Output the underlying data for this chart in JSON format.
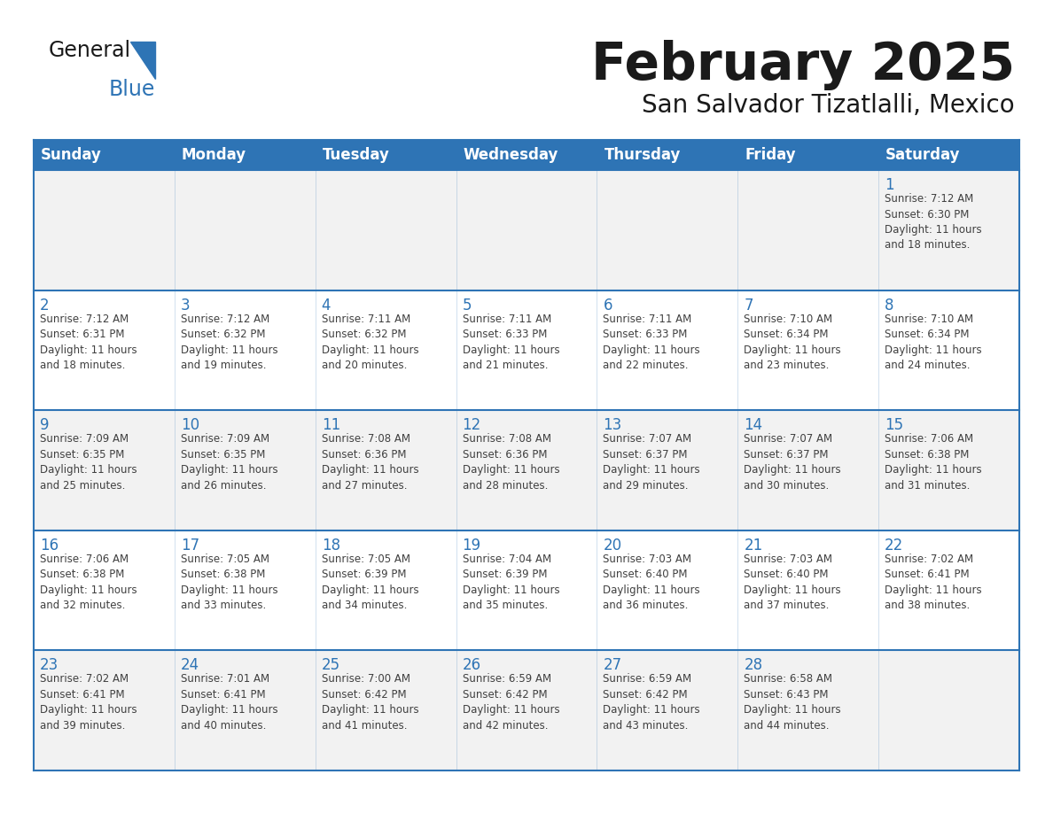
{
  "title": "February 2025",
  "subtitle": "San Salvador Tizatlalli, Mexico",
  "header_bg": "#2e74b5",
  "header_text_color": "#ffffff",
  "cell_bg_white": "#ffffff",
  "cell_bg_gray": "#f2f2f2",
  "cell_border_color": "#2e74b5",
  "day_number_color": "#2e74b5",
  "info_text_color": "#404040",
  "title_color": "#1a1a1a",
  "days_of_week": [
    "Sunday",
    "Monday",
    "Tuesday",
    "Wednesday",
    "Thursday",
    "Friday",
    "Saturday"
  ],
  "weeks": [
    [
      {
        "day": "",
        "info": ""
      },
      {
        "day": "",
        "info": ""
      },
      {
        "day": "",
        "info": ""
      },
      {
        "day": "",
        "info": ""
      },
      {
        "day": "",
        "info": ""
      },
      {
        "day": "",
        "info": ""
      },
      {
        "day": "1",
        "info": "Sunrise: 7:12 AM\nSunset: 6:30 PM\nDaylight: 11 hours\nand 18 minutes."
      }
    ],
    [
      {
        "day": "2",
        "info": "Sunrise: 7:12 AM\nSunset: 6:31 PM\nDaylight: 11 hours\nand 18 minutes."
      },
      {
        "day": "3",
        "info": "Sunrise: 7:12 AM\nSunset: 6:32 PM\nDaylight: 11 hours\nand 19 minutes."
      },
      {
        "day": "4",
        "info": "Sunrise: 7:11 AM\nSunset: 6:32 PM\nDaylight: 11 hours\nand 20 minutes."
      },
      {
        "day": "5",
        "info": "Sunrise: 7:11 AM\nSunset: 6:33 PM\nDaylight: 11 hours\nand 21 minutes."
      },
      {
        "day": "6",
        "info": "Sunrise: 7:11 AM\nSunset: 6:33 PM\nDaylight: 11 hours\nand 22 minutes."
      },
      {
        "day": "7",
        "info": "Sunrise: 7:10 AM\nSunset: 6:34 PM\nDaylight: 11 hours\nand 23 minutes."
      },
      {
        "day": "8",
        "info": "Sunrise: 7:10 AM\nSunset: 6:34 PM\nDaylight: 11 hours\nand 24 minutes."
      }
    ],
    [
      {
        "day": "9",
        "info": "Sunrise: 7:09 AM\nSunset: 6:35 PM\nDaylight: 11 hours\nand 25 minutes."
      },
      {
        "day": "10",
        "info": "Sunrise: 7:09 AM\nSunset: 6:35 PM\nDaylight: 11 hours\nand 26 minutes."
      },
      {
        "day": "11",
        "info": "Sunrise: 7:08 AM\nSunset: 6:36 PM\nDaylight: 11 hours\nand 27 minutes."
      },
      {
        "day": "12",
        "info": "Sunrise: 7:08 AM\nSunset: 6:36 PM\nDaylight: 11 hours\nand 28 minutes."
      },
      {
        "day": "13",
        "info": "Sunrise: 7:07 AM\nSunset: 6:37 PM\nDaylight: 11 hours\nand 29 minutes."
      },
      {
        "day": "14",
        "info": "Sunrise: 7:07 AM\nSunset: 6:37 PM\nDaylight: 11 hours\nand 30 minutes."
      },
      {
        "day": "15",
        "info": "Sunrise: 7:06 AM\nSunset: 6:38 PM\nDaylight: 11 hours\nand 31 minutes."
      }
    ],
    [
      {
        "day": "16",
        "info": "Sunrise: 7:06 AM\nSunset: 6:38 PM\nDaylight: 11 hours\nand 32 minutes."
      },
      {
        "day": "17",
        "info": "Sunrise: 7:05 AM\nSunset: 6:38 PM\nDaylight: 11 hours\nand 33 minutes."
      },
      {
        "day": "18",
        "info": "Sunrise: 7:05 AM\nSunset: 6:39 PM\nDaylight: 11 hours\nand 34 minutes."
      },
      {
        "day": "19",
        "info": "Sunrise: 7:04 AM\nSunset: 6:39 PM\nDaylight: 11 hours\nand 35 minutes."
      },
      {
        "day": "20",
        "info": "Sunrise: 7:03 AM\nSunset: 6:40 PM\nDaylight: 11 hours\nand 36 minutes."
      },
      {
        "day": "21",
        "info": "Sunrise: 7:03 AM\nSunset: 6:40 PM\nDaylight: 11 hours\nand 37 minutes."
      },
      {
        "day": "22",
        "info": "Sunrise: 7:02 AM\nSunset: 6:41 PM\nDaylight: 11 hours\nand 38 minutes."
      }
    ],
    [
      {
        "day": "23",
        "info": "Sunrise: 7:02 AM\nSunset: 6:41 PM\nDaylight: 11 hours\nand 39 minutes."
      },
      {
        "day": "24",
        "info": "Sunrise: 7:01 AM\nSunset: 6:41 PM\nDaylight: 11 hours\nand 40 minutes."
      },
      {
        "day": "25",
        "info": "Sunrise: 7:00 AM\nSunset: 6:42 PM\nDaylight: 11 hours\nand 41 minutes."
      },
      {
        "day": "26",
        "info": "Sunrise: 6:59 AM\nSunset: 6:42 PM\nDaylight: 11 hours\nand 42 minutes."
      },
      {
        "day": "27",
        "info": "Sunrise: 6:59 AM\nSunset: 6:42 PM\nDaylight: 11 hours\nand 43 minutes."
      },
      {
        "day": "28",
        "info": "Sunrise: 6:58 AM\nSunset: 6:43 PM\nDaylight: 11 hours\nand 44 minutes."
      },
      {
        "day": "",
        "info": ""
      }
    ]
  ],
  "logo_general_color": "#1a1a1a",
  "logo_blue_color": "#2e74b5",
  "background_color": "#ffffff",
  "week_row_bg": [
    "#f2f2f2",
    "#ffffff",
    "#f2f2f2",
    "#ffffff",
    "#f2f2f2"
  ]
}
